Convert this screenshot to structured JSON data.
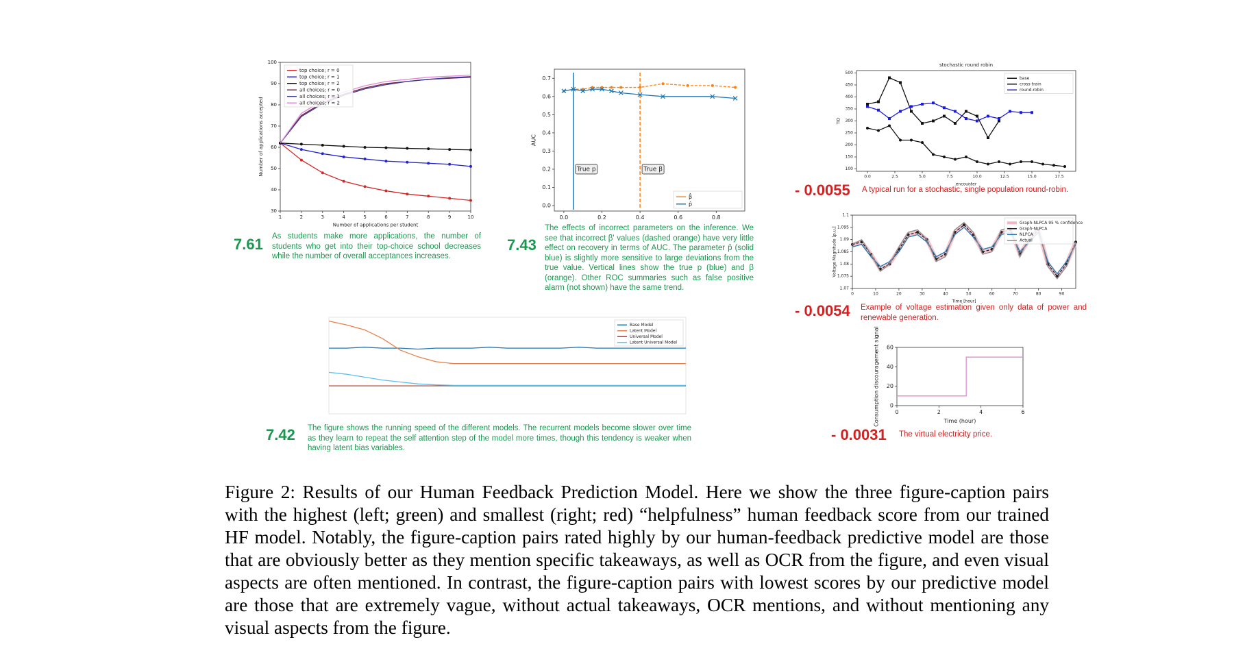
{
  "chart_data": [
    {
      "type": "line",
      "xlabel": "Number of applications per student",
      "ylabel": "Number of applications accepted",
      "x": [
        1,
        2,
        3,
        4,
        5,
        6,
        7,
        8,
        9,
        10
      ],
      "xlim": [
        1,
        10
      ],
      "ylim": [
        30,
        100
      ],
      "xticks": [
        1,
        2,
        3,
        4,
        5,
        6,
        7,
        8,
        9,
        10
      ],
      "yticks": [
        30,
        40,
        50,
        60,
        70,
        80,
        90,
        100
      ],
      "legend": "upper left",
      "series": [
        {
          "name": "top choice; r = 0",
          "color": "#d62728",
          "marker": "o",
          "values": [
            62,
            54,
            48,
            44,
            41.5,
            39.5,
            38,
            37,
            36,
            35
          ]
        },
        {
          "name": "top choice; r = 1",
          "color": "#2323d0",
          "marker": "o",
          "values": [
            62,
            59,
            57,
            55.5,
            54.5,
            53.5,
            53,
            52.5,
            52,
            51
          ]
        },
        {
          "name": "top choice; r = 2",
          "color": "#111111",
          "marker": "o",
          "values": [
            62,
            61.5,
            61,
            60.5,
            60,
            59.8,
            59.5,
            59.3,
            59,
            58.8
          ]
        },
        {
          "name": "all choices; r = 0",
          "color": "#7a1f3d",
          "values": [
            62,
            75,
            81,
            85,
            88,
            90,
            91,
            92,
            92.5,
            93
          ]
        },
        {
          "name": "all choices; r = 1",
          "color": "#3a3a9a",
          "values": [
            62,
            74.5,
            80.5,
            84.5,
            87.5,
            89.5,
            91,
            92,
            92.8,
            93.3
          ]
        },
        {
          "name": "all choices; r = 2",
          "color": "#e38ad6",
          "values": [
            62,
            76,
            82,
            86,
            89,
            91,
            92,
            93,
            93.5,
            94
          ]
        }
      ],
      "score": "7.61",
      "score_color": "#1a9850",
      "caption": "As students make more applications, the number of students who get into their top-choice school decreases while the number of overall acceptances increases."
    },
    {
      "type": "line",
      "ylabel": "AUC",
      "xlim": [
        -0.05,
        0.95
      ],
      "ylim": [
        -0.03,
        0.75
      ],
      "xticks": [
        {
          "value": 0,
          "label": "0.0"
        },
        0.2,
        0.4,
        0.6,
        0.8
      ],
      "yticks": [
        {
          "value": 0,
          "label": "0.0"
        },
        0.1,
        0.2,
        0.3,
        0.4,
        0.5,
        0.6,
        0.7
      ],
      "legend": "lower right",
      "vlines": [
        {
          "x": 0.05,
          "label": "True p",
          "color": "#1f77b4"
        },
        {
          "x": 0.4,
          "label": "True β",
          "color": "#ff7f0e",
          "dash": true
        }
      ],
      "series": [
        {
          "name": "β̂",
          "color": "#ff7f0e",
          "marker": "o",
          "dash": true,
          "x": [
            0,
            0.05,
            0.1,
            0.15,
            0.2,
            0.25,
            0.3,
            0.4,
            0.52,
            0.65,
            0.78,
            0.9
          ],
          "values": [
            0.63,
            0.64,
            0.64,
            0.65,
            0.65,
            0.65,
            0.65,
            0.65,
            0.67,
            0.66,
            0.66,
            0.65
          ]
        },
        {
          "name": "p̂",
          "color": "#1f77b4",
          "marker": "x",
          "x": [
            0,
            0.05,
            0.1,
            0.15,
            0.2,
            0.25,
            0.3,
            0.4,
            0.52,
            0.78,
            0.9
          ],
          "values": [
            0.63,
            0.64,
            0.63,
            0.64,
            0.64,
            0.63,
            0.62,
            0.61,
            0.6,
            0.6,
            0.59
          ]
        }
      ],
      "score": "7.43",
      "score_color": "#1a9850",
      "caption": "The effects of incorrect parameters on the inference. We see that incorrect β' values (dashed orange) have very little effect on recovery in terms of AUC. The parameter p̂ (solid blue) is slightly more sensitive to large deviations from the true value. Vertical lines show the true p (blue) and β (orange). Other ROC summaries such as false positive alarm (not shown) have the same trend."
    },
    {
      "type": "line",
      "title": "stochastic round robin",
      "xlabel": "encounter",
      "ylabel": "TID",
      "xlim": [
        -1,
        19
      ],
      "ylim": [
        90,
        510
      ],
      "xticks": [
        {
          "value": 0,
          "label": "0.0"
        },
        2.5,
        {
          "value": 5,
          "label": "5.0"
        },
        7.5,
        {
          "value": 10,
          "label": "10.0"
        },
        12.5,
        {
          "value": 15,
          "label": "15.0"
        },
        17.5
      ],
      "yticks": [
        100,
        150,
        200,
        250,
        300,
        350,
        400,
        450,
        500
      ],
      "legend": "upper right",
      "series": [
        {
          "name": "base",
          "color": "#111111",
          "marker": "o",
          "x": [
            0,
            1,
            2,
            3,
            4,
            5,
            6,
            7,
            8,
            9,
            10,
            11,
            12,
            13,
            14,
            15,
            16,
            17,
            18
          ],
          "values": [
            270,
            260,
            280,
            220,
            220,
            210,
            160,
            150,
            140,
            150,
            130,
            120,
            130,
            120,
            130,
            130,
            120,
            115,
            110
          ]
        },
        {
          "name": "cross-train",
          "color": "#111111",
          "marker": "s",
          "x": [
            0,
            1,
            2,
            3,
            4,
            5,
            6,
            7,
            8,
            9,
            10,
            11,
            12
          ],
          "values": [
            370,
            380,
            480,
            460,
            340,
            290,
            300,
            320,
            290,
            340,
            320,
            230,
            300
          ]
        },
        {
          "name": "round-robin",
          "color": "#1a1ae0",
          "marker": "s",
          "x": [
            0,
            1,
            2,
            3,
            4,
            5,
            6,
            7,
            8,
            9,
            10,
            11,
            12,
            13,
            14,
            15
          ],
          "values": [
            360,
            345,
            310,
            340,
            360,
            370,
            375,
            355,
            340,
            310,
            300,
            320,
            310,
            340,
            335,
            335
          ]
        }
      ],
      "score": "- 0.0055",
      "score_color": "#d42020",
      "caption": "A typical run for a stochastic, single population round-robin."
    },
    {
      "type": "line",
      "xlabel": "Time [hour]",
      "ylabel": "Voltage Magnitude [p.u.]",
      "x": [
        0,
        4,
        8,
        12,
        16,
        20,
        24,
        28,
        32,
        36,
        40,
        44,
        48,
        52,
        56,
        60,
        64,
        68,
        72,
        76,
        80,
        84,
        88,
        92,
        96
      ],
      "xlim": [
        0,
        96
      ],
      "ylim": [
        1.07,
        1.1
      ],
      "xticks": [
        0,
        10,
        20,
        30,
        40,
        50,
        60,
        70,
        80,
        90
      ],
      "yticks": [
        1.07,
        1.075,
        1.08,
        1.085,
        1.09,
        1.095,
        1.1
      ],
      "legend": "upper right",
      "series": [
        {
          "name": "Graph-NLPCA 95 % confidence",
          "color": "#f4b6c2",
          "width": 6,
          "values": [
            1.088,
            1.089,
            1.084,
            1.078,
            1.08,
            1.086,
            1.092,
            1.093,
            1.09,
            1.082,
            1.084,
            1.093,
            1.096,
            1.092,
            1.085,
            1.086,
            1.093,
            1.094,
            1.084,
            1.09,
            1.094,
            1.08,
            1.075,
            1.08,
            1.089
          ]
        },
        {
          "name": "Graph-NLPCA",
          "color": "#222222",
          "marker": "o",
          "dash": true,
          "values": [
            1.088,
            1.089,
            1.084,
            1.078,
            1.08,
            1.086,
            1.092,
            1.093,
            1.09,
            1.082,
            1.084,
            1.093,
            1.096,
            1.092,
            1.085,
            1.086,
            1.093,
            1.094,
            1.084,
            1.09,
            1.094,
            1.08,
            1.075,
            1.08,
            1.089
          ]
        },
        {
          "name": "NLPCA",
          "color": "#1f77b4",
          "values": [
            1.087,
            1.088,
            1.083,
            1.079,
            1.081,
            1.085,
            1.091,
            1.092,
            1.089,
            1.083,
            1.085,
            1.092,
            1.095,
            1.091,
            1.086,
            1.087,
            1.092,
            1.093,
            1.085,
            1.089,
            1.093,
            1.081,
            1.076,
            1.081,
            1.088
          ]
        },
        {
          "name": "Actual",
          "color": "#888888",
          "values": [
            1.088,
            1.09,
            1.084,
            1.077,
            1.08,
            1.087,
            1.093,
            1.094,
            1.09,
            1.081,
            1.083,
            1.094,
            1.097,
            1.093,
            1.084,
            1.085,
            1.094,
            1.095,
            1.083,
            1.091,
            1.095,
            1.079,
            1.074,
            1.079,
            1.089
          ]
        }
      ],
      "score": "- 0.0054",
      "score_color": "#d42020",
      "caption": "Example of voltage estimation given only data of power and renewable generation."
    },
    {
      "type": "line",
      "x": [
        0,
        1,
        2,
        3,
        4,
        5,
        6,
        7,
        8,
        9,
        10,
        11,
        12,
        13,
        14,
        15,
        16,
        17,
        18,
        19,
        20
      ],
      "xlim": [
        0,
        20
      ],
      "ylim": [
        0,
        10
      ],
      "legend": "upper right",
      "series": [
        {
          "name": "Base Model",
          "color": "#1f77b4",
          "values": [
            6.8,
            6.8,
            6.9,
            6.8,
            6.8,
            6.7,
            6.8,
            6.8,
            6.8,
            6.9,
            6.8,
            6.8,
            6.8,
            6.8,
            6.9,
            6.8,
            6.8,
            6.8,
            6.8,
            6.8,
            6.8
          ]
        },
        {
          "name": "Latent Model",
          "color": "#e8804c",
          "values": [
            9.6,
            9.2,
            8.7,
            7.8,
            6.6,
            5.9,
            5.4,
            5.2,
            5.2,
            5.2,
            5.2,
            5.2,
            5.2,
            5.2,
            5.2,
            5.2,
            5.2,
            5.2,
            5.2,
            5.2,
            5.2
          ]
        },
        {
          "name": "Universal Model",
          "color": "#c0392b",
          "values": [
            2.9,
            2.9,
            2.9,
            2.9,
            2.9,
            2.9,
            2.9,
            2.9,
            2.9,
            2.9,
            2.9,
            2.9,
            2.9,
            2.9,
            2.9,
            2.9,
            2.9,
            2.9,
            2.9,
            2.9,
            2.9
          ]
        },
        {
          "name": "Latent Universal Model",
          "color": "#5bc0eb",
          "values": [
            4.3,
            4.1,
            3.8,
            3.5,
            3.3,
            3.1,
            3,
            2.95,
            2.95,
            2.95,
            2.95,
            2.95,
            2.95,
            2.95,
            2.95,
            2.95,
            2.95,
            2.95,
            2.95,
            2.95,
            2.95
          ]
        }
      ],
      "score": "7.42",
      "score_color": "#1a9850",
      "caption": "The figure shows the running speed of the different models. The recurrent models become slower over time as they learn to repeat the self attention step of the model more times, though this tendency is weaker when having latent bias variables."
    },
    {
      "type": "line",
      "xlabel": "Time (hour)",
      "ylabel": "Consumption discouragement signal",
      "xlim": [
        0,
        6
      ],
      "ylim": [
        0,
        60
      ],
      "xticks": [
        0,
        2,
        4,
        6
      ],
      "yticks": [
        0,
        20,
        40,
        60
      ],
      "series": [
        {
          "color": "#e38ad6",
          "x": [
            0,
            3.3,
            3.3,
            6
          ],
          "values": [
            10,
            10,
            50,
            50
          ]
        }
      ],
      "score": "- 0.0031",
      "score_color": "#d42020",
      "caption": "The virtual electricity price."
    }
  ],
  "figure_caption": "Figure 2: Results of our Human Feedback Prediction Model. Here we show the three figure-caption pairs with the highest (left; green) and smallest (right; red) “helpfulness” human feedback score from our trained HF model. Notably, the figure-caption pairs rated highly by our human-feedback predictive model are those that are obviously better as they mention specific takeaways, as well as OCR from the figure, and even visual aspects are often mentioned. In contrast, the figure-caption pairs with lowest scores by our predictive model are those that are extremely vague, without actual takeaways, OCR mentions, and without mentioning any visual aspects from the figure."
}
